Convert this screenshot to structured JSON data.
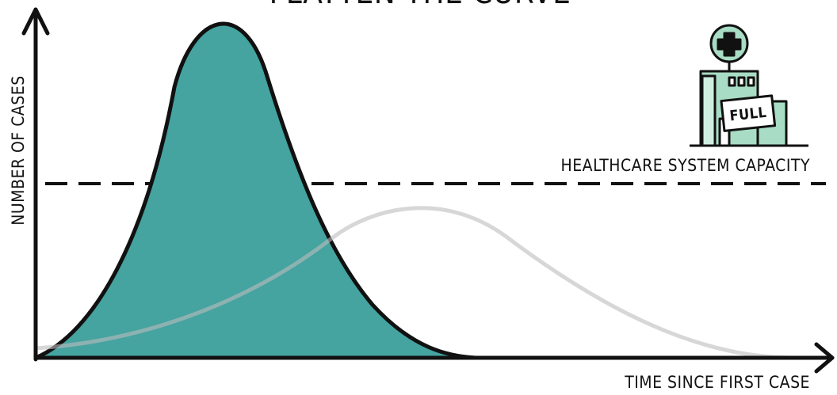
{
  "title": "FLATTEN THE CURVE",
  "y_axis_label": "NUMBER OF CASES",
  "x_axis_label": "TIME SINCE FIRST CASE",
  "capacity_label": "HEALTHCARE SYSTEM CAPACITY",
  "hospital_sign": "FULL"
}
